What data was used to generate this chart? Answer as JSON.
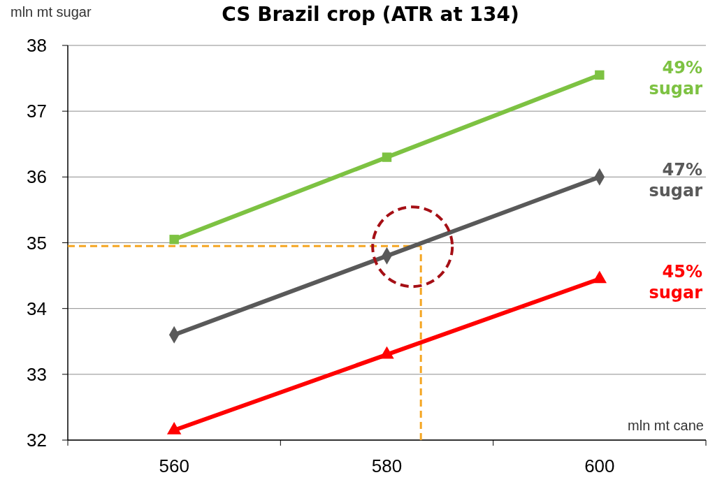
{
  "chart_data": {
    "type": "line",
    "title": "CS Brazil crop (ATR at 134)",
    "ylabel": "mln mt sugar",
    "xlabel": "mln mt cane",
    "x": [
      560,
      580,
      600
    ],
    "xlim": [
      550,
      610
    ],
    "xticks": [
      {
        "value": 550,
        "label": null
      },
      560,
      {
        "value": 570,
        "label": null
      },
      580,
      {
        "value": 590,
        "label": null
      },
      600,
      {
        "value": 610,
        "label": null
      }
    ],
    "ylim": [
      32,
      38
    ],
    "yticks": [
      32,
      33,
      34,
      35,
      36,
      37,
      38
    ],
    "grid": "y",
    "series": [
      {
        "name": "49% sugar",
        "color": "#7dc242",
        "values": [
          35.05,
          36.3,
          37.55
        ],
        "marker": "square"
      },
      {
        "name": "47% sugar",
        "color": "#595959",
        "values": [
          33.6,
          34.8,
          36.0
        ],
        "marker": "diamond"
      },
      {
        "name": "45% sugar",
        "color": "#ff0000",
        "values": [
          32.15,
          33.3,
          34.45
        ],
        "marker": "triangle"
      }
    ],
    "ref_lines": [
      {
        "axis": "y",
        "value": 34.95,
        "color": "#f5a623",
        "line_style": "dashed"
      },
      {
        "axis": "x",
        "value": 583.2,
        "color": "#f5a623",
        "line_style": "dashed"
      }
    ]
  }
}
